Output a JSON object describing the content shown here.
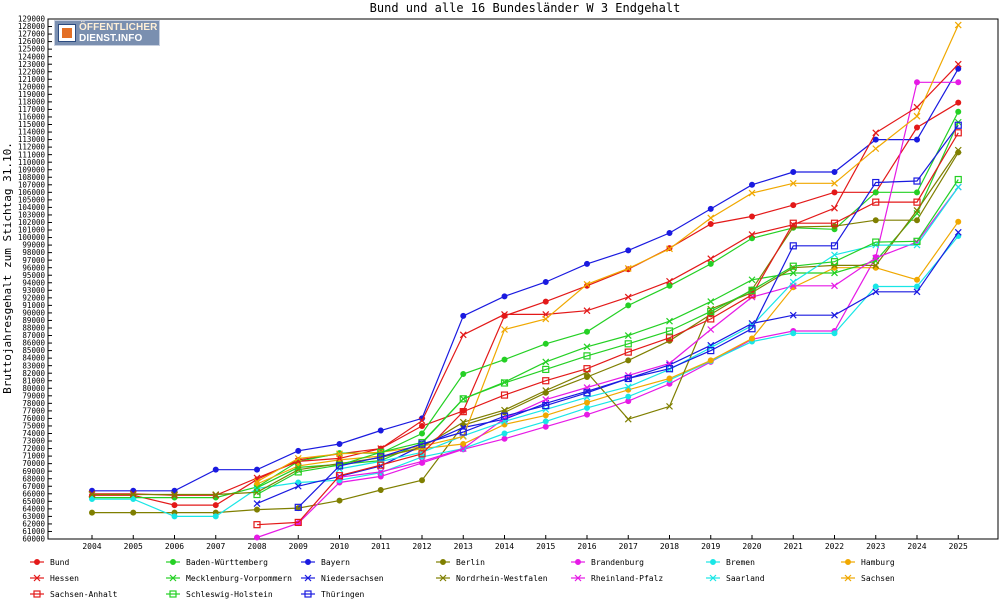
{
  "logo": {
    "line1": "ÖFFENTLICHER",
    "line2": "DIENST.INFO"
  },
  "chart_data": {
    "type": "line",
    "title": "Bund und alle 16 Bundesländer W 3 Endgehalt",
    "xlabel": "",
    "ylabel": "Bruttojahresgehalt zum Stichtag 31.10.",
    "x": [
      2004,
      2005,
      2006,
      2007,
      2008,
      2009,
      2010,
      2011,
      2012,
      2013,
      2014,
      2015,
      2016,
      2017,
      2018,
      2019,
      2020,
      2021,
      2022,
      2023,
      2024,
      2025
    ],
    "ylim": [
      60000,
      129000
    ],
    "ytick_step": 1000,
    "grid": false,
    "legend_position": "bottom",
    "series": [
      {
        "name": "Bund",
        "color": "#e31919",
        "marker": "dot",
        "values": [
          65800,
          65800,
          64500,
          64500,
          67900,
          70500,
          71300,
          72000,
          75000,
          77000,
          89600,
          91500,
          93600,
          95800,
          98600,
          101800,
          102800,
          104300,
          106000,
          106000,
          114600,
          117900
        ]
      },
      {
        "name": "Baden-Württemberg",
        "color": "#24d024",
        "marker": "dot",
        "values": [
          65500,
          65500,
          65500,
          65500,
          66900,
          70300,
          71400,
          71400,
          74000,
          81900,
          83800,
          85900,
          87500,
          91000,
          93600,
          96500,
          99900,
          101300,
          101100,
          106000,
          106000,
          116700
        ]
      },
      {
        "name": "Bayern",
        "color": "#1a1ae0",
        "marker": "dot",
        "values": [
          66400,
          66400,
          66400,
          69200,
          69200,
          71700,
          72600,
          74400,
          76000,
          89600,
          92200,
          94100,
          96500,
          98300,
          100600,
          103800,
          107000,
          108700,
          108700,
          113000,
          113000,
          122400
        ]
      },
      {
        "name": "Berlin",
        "color": "#7f7f00",
        "marker": "dot",
        "values": [
          63500,
          63500,
          63500,
          63500,
          63900,
          64100,
          65100,
          66500,
          67800,
          75100,
          76800,
          79400,
          81500,
          83700,
          86300,
          89800,
          93100,
          101400,
          101500,
          102300,
          102300,
          111300
        ]
      },
      {
        "name": "Brandenburg",
        "color": "#e61ae6",
        "marker": "dot",
        "values": [
          null,
          null,
          null,
          null,
          60200,
          62100,
          67500,
          68300,
          70100,
          71900,
          73300,
          74900,
          76500,
          78300,
          80600,
          83500,
          86500,
          87600,
          87600,
          97400,
          120600,
          120600
        ]
      },
      {
        "name": "Bremen",
        "color": "#19e6e6",
        "marker": "dot",
        "values": [
          65300,
          65300,
          63000,
          63000,
          66700,
          67500,
          67800,
          68800,
          70900,
          72000,
          74000,
          75600,
          77400,
          78900,
          81100,
          83600,
          86200,
          87300,
          87300,
          93500,
          93500,
          100200
        ]
      },
      {
        "name": "Hamburg",
        "color": "#f0a800",
        "marker": "dot",
        "values": [
          null,
          null,
          null,
          null,
          67300,
          69700,
          70500,
          71000,
          72000,
          72600,
          75200,
          76400,
          78100,
          79800,
          81300,
          83700,
          86600,
          93400,
          96000,
          96000,
          94400,
          102100
        ]
      },
      {
        "name": "Hessen",
        "color": "#e31919",
        "marker": "x",
        "values": [
          66000,
          66000,
          65800,
          65800,
          68100,
          70300,
          70700,
          72000,
          75700,
          87100,
          89800,
          89800,
          90300,
          92100,
          94200,
          97200,
          100400,
          101700,
          103900,
          113900,
          117300,
          123000
        ]
      },
      {
        "name": "Mecklenburg-Vorpommern",
        "color": "#24d024",
        "marker": "x",
        "values": [
          null,
          null,
          null,
          null,
          66800,
          69500,
          69900,
          70400,
          72700,
          78600,
          80800,
          83500,
          85500,
          87000,
          88900,
          91500,
          94400,
          95300,
          95300,
          96900,
          103200,
          115300
        ]
      },
      {
        "name": "Niedersachsen",
        "color": "#1a1ae0",
        "marker": "x",
        "values": [
          null,
          null,
          null,
          null,
          64700,
          67000,
          68300,
          69700,
          72400,
          74800,
          75900,
          78000,
          79600,
          81300,
          83100,
          85700,
          88600,
          89700,
          89700,
          92800,
          92800,
          100700
        ]
      },
      {
        "name": "Nordrhein-Westfalen",
        "color": "#7f7f00",
        "marker": "x",
        "values": [
          65900,
          65900,
          65900,
          65900,
          66200,
          69200,
          70000,
          70800,
          72200,
          75500,
          77100,
          79700,
          82100,
          75900,
          77600,
          90500,
          92700,
          96000,
          96300,
          96300,
          103600,
          111600
        ]
      },
      {
        "name": "Rheinland-Pfalz",
        "color": "#e61ae6",
        "marker": "x",
        "values": [
          null,
          null,
          null,
          null,
          null,
          null,
          68200,
          68900,
          70300,
          72000,
          76000,
          78500,
          80100,
          81700,
          83300,
          87800,
          92100,
          93600,
          93600,
          97300,
          99400,
          106700
        ]
      },
      {
        "name": "Saarland",
        "color": "#19e6e6",
        "marker": "x",
        "values": [
          null,
          null,
          null,
          null,
          null,
          null,
          69300,
          70300,
          71500,
          73700,
          75600,
          77200,
          78800,
          80200,
          82500,
          85400,
          88300,
          94100,
          97700,
          99000,
          99000,
          106700
        ]
      },
      {
        "name": "Sachsen",
        "color": "#f0a800",
        "marker": "x",
        "values": [
          null,
          null,
          null,
          null,
          67600,
          70700,
          71300,
          71500,
          72300,
          73600,
          87800,
          89200,
          93800,
          95900,
          98500,
          102600,
          105900,
          107200,
          107200,
          111800,
          116100,
          128200
        ]
      },
      {
        "name": "Sachsen-Anhalt",
        "color": "#e31919",
        "marker": "square",
        "values": [
          null,
          null,
          null,
          null,
          61900,
          62200,
          68400,
          69800,
          71300,
          76900,
          79100,
          81000,
          82600,
          84800,
          86700,
          89200,
          92400,
          101900,
          101900,
          104700,
          104700,
          113900
        ]
      },
      {
        "name": "Schleswig-Holstein",
        "color": "#24d024",
        "marker": "square",
        "values": [
          null,
          null,
          null,
          null,
          65900,
          68900,
          69800,
          71500,
          72800,
          78600,
          80700,
          82500,
          84300,
          85900,
          87600,
          90200,
          93000,
          96200,
          96800,
          99400,
          99500,
          107700
        ]
      },
      {
        "name": "Thüringen",
        "color": "#1a1ae0",
        "marker": "square",
        "values": [
          null,
          null,
          null,
          null,
          null,
          64200,
          69700,
          70900,
          72600,
          74200,
          76300,
          77700,
          79400,
          81300,
          82600,
          85000,
          87900,
          98900,
          98900,
          107300,
          107500,
          114900
        ]
      }
    ]
  }
}
